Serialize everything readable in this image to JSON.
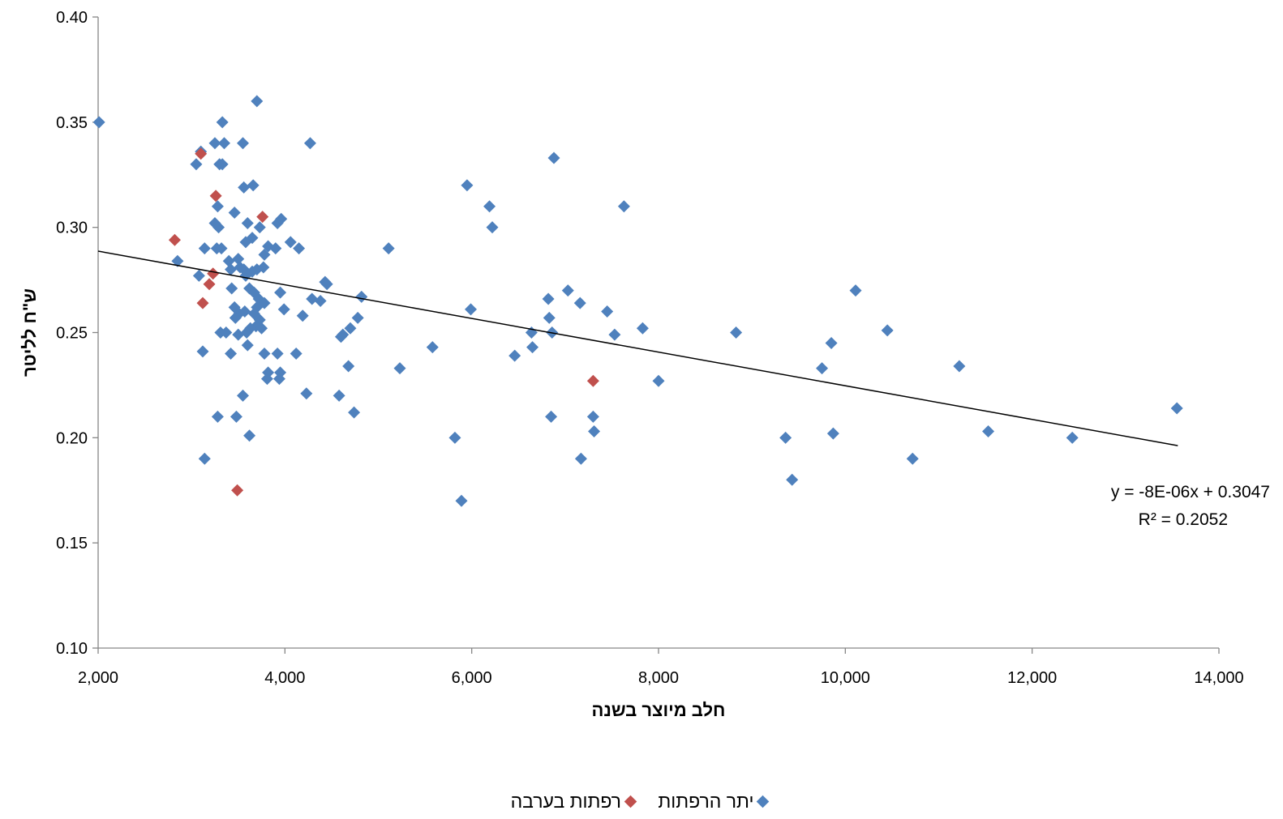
{
  "chart_data": {
    "type": "scatter",
    "title": "",
    "xlabel": "חלב מיוצר בשנה",
    "ylabel": "ש\"ח לליטר",
    "xlim": [
      2000,
      14000
    ],
    "ylim": [
      0.1,
      0.4
    ],
    "x_ticks": [
      "2,000",
      "4,000",
      "6,000",
      "8,000",
      "10,000",
      "12,000",
      "14,000"
    ],
    "y_ticks": [
      "0.10",
      "0.15",
      "0.20",
      "0.25",
      "0.30",
      "0.35",
      "0.40"
    ],
    "x_tick_values": [
      2000,
      4000,
      6000,
      8000,
      10000,
      12000,
      14000
    ],
    "y_tick_values": [
      0.1,
      0.15,
      0.2,
      0.25,
      0.3,
      0.35,
      0.4
    ],
    "grid": false,
    "legend_position": "bottom",
    "trendline": {
      "slope": -8e-06,
      "intercept": 0.3047,
      "x_range": [
        2000,
        13560
      ],
      "equation_label": "y = -8E-06x + 0.3047",
      "r2_label": "R² = 0.2052"
    },
    "series": [
      {
        "name": "יתר הרפתות",
        "color": "#4f81bd",
        "points": [
          [
            2010,
            0.35
          ],
          [
            3100,
            0.336
          ],
          [
            3050,
            0.33
          ],
          [
            3250,
            0.34
          ],
          [
            3330,
            0.35
          ],
          [
            3350,
            0.34
          ],
          [
            3550,
            0.34
          ],
          [
            3300,
            0.33
          ],
          [
            3330,
            0.33
          ],
          [
            3700,
            0.36
          ],
          [
            4270,
            0.34
          ],
          [
            3660,
            0.32
          ],
          [
            3560,
            0.319
          ],
          [
            3280,
            0.31
          ],
          [
            3460,
            0.307
          ],
          [
            3250,
            0.302
          ],
          [
            3290,
            0.3
          ],
          [
            3600,
            0.302
          ],
          [
            3730,
            0.3
          ],
          [
            3920,
            0.302
          ],
          [
            3960,
            0.304
          ],
          [
            3650,
            0.295
          ],
          [
            3580,
            0.293
          ],
          [
            4060,
            0.293
          ],
          [
            3820,
            0.291
          ],
          [
            3140,
            0.29
          ],
          [
            3270,
            0.29
          ],
          [
            3320,
            0.29
          ],
          [
            3900,
            0.29
          ],
          [
            4150,
            0.29
          ],
          [
            3780,
            0.287
          ],
          [
            2850,
            0.284
          ],
          [
            3400,
            0.284
          ],
          [
            3500,
            0.285
          ],
          [
            3520,
            0.281
          ],
          [
            3700,
            0.28
          ],
          [
            3770,
            0.281
          ],
          [
            3580,
            0.277
          ],
          [
            3080,
            0.277
          ],
          [
            3420,
            0.28
          ],
          [
            3560,
            0.28
          ],
          [
            3650,
            0.279
          ],
          [
            4430,
            0.274
          ],
          [
            4450,
            0.273
          ],
          [
            3430,
            0.271
          ],
          [
            3620,
            0.271
          ],
          [
            3670,
            0.269
          ],
          [
            3950,
            0.269
          ],
          [
            4820,
            0.267
          ],
          [
            4290,
            0.266
          ],
          [
            4380,
            0.265
          ],
          [
            3720,
            0.266
          ],
          [
            3780,
            0.264
          ],
          [
            3460,
            0.262
          ],
          [
            3700,
            0.262
          ],
          [
            3990,
            0.261
          ],
          [
            3510,
            0.259
          ],
          [
            3670,
            0.259
          ],
          [
            3570,
            0.26
          ],
          [
            4780,
            0.257
          ],
          [
            4190,
            0.258
          ],
          [
            3470,
            0.257
          ],
          [
            3730,
            0.256
          ],
          [
            3690,
            0.253
          ],
          [
            3750,
            0.252
          ],
          [
            3630,
            0.252
          ],
          [
            4700,
            0.252
          ],
          [
            3310,
            0.25
          ],
          [
            3370,
            0.25
          ],
          [
            3500,
            0.249
          ],
          [
            3590,
            0.25
          ],
          [
            4600,
            0.248
          ],
          [
            4620,
            0.249
          ],
          [
            3600,
            0.244
          ],
          [
            3120,
            0.241
          ],
          [
            3420,
            0.24
          ],
          [
            3780,
            0.24
          ],
          [
            3920,
            0.24
          ],
          [
            4120,
            0.24
          ],
          [
            4680,
            0.234
          ],
          [
            3820,
            0.231
          ],
          [
            3950,
            0.231
          ],
          [
            3810,
            0.228
          ],
          [
            3940,
            0.228
          ],
          [
            4230,
            0.221
          ],
          [
            4580,
            0.22
          ],
          [
            3550,
            0.22
          ],
          [
            4740,
            0.212
          ],
          [
            3280,
            0.21
          ],
          [
            3480,
            0.21
          ],
          [
            3620,
            0.201
          ],
          [
            3140,
            0.19
          ],
          [
            5110,
            0.29
          ],
          [
            5230,
            0.233
          ],
          [
            5580,
            0.243
          ],
          [
            5820,
            0.2
          ],
          [
            5890,
            0.17
          ],
          [
            5950,
            0.32
          ],
          [
            5990,
            0.261
          ],
          [
            6190,
            0.31
          ],
          [
            6220,
            0.3
          ],
          [
            6460,
            0.239
          ],
          [
            6640,
            0.25
          ],
          [
            6650,
            0.243
          ],
          [
            6820,
            0.266
          ],
          [
            6830,
            0.257
          ],
          [
            6850,
            0.21
          ],
          [
            6860,
            0.25
          ],
          [
            6880,
            0.333
          ],
          [
            7030,
            0.27
          ],
          [
            7160,
            0.264
          ],
          [
            7170,
            0.19
          ],
          [
            7300,
            0.21
          ],
          [
            7310,
            0.203
          ],
          [
            7450,
            0.26
          ],
          [
            7530,
            0.249
          ],
          [
            7630,
            0.31
          ],
          [
            7830,
            0.252
          ],
          [
            8000,
            0.227
          ],
          [
            8830,
            0.25
          ],
          [
            9360,
            0.2
          ],
          [
            9430,
            0.18
          ],
          [
            9750,
            0.233
          ],
          [
            9850,
            0.245
          ],
          [
            9870,
            0.202
          ],
          [
            10110,
            0.27
          ],
          [
            10450,
            0.251
          ],
          [
            10720,
            0.19
          ],
          [
            11220,
            0.234
          ],
          [
            11530,
            0.203
          ],
          [
            12430,
            0.2
          ],
          [
            13550,
            0.214
          ]
        ]
      },
      {
        "name": "רפתות בערבה",
        "color": "#c0504d",
        "points": [
          [
            3100,
            0.335
          ],
          [
            3260,
            0.315
          ],
          [
            3760,
            0.305
          ],
          [
            2820,
            0.294
          ],
          [
            3230,
            0.278
          ],
          [
            3190,
            0.273
          ],
          [
            3120,
            0.264
          ],
          [
            3490,
            0.175
          ],
          [
            7300,
            0.227
          ]
        ]
      }
    ]
  }
}
